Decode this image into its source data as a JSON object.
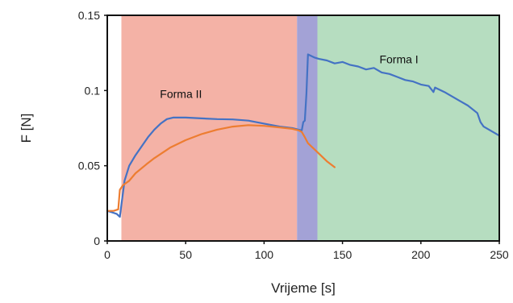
{
  "chart_data": {
    "type": "line",
    "xlabel": "Vrijeme [s]",
    "ylabel": "F  [N]",
    "xlim": [
      0,
      250
    ],
    "ylim": [
      0,
      0.15
    ],
    "x_ticks": [
      0,
      50,
      100,
      150,
      200,
      250
    ],
    "y_ticks": [
      0,
      0.05,
      0.1,
      0.15
    ],
    "x_tick_labels": [
      "0",
      "50",
      "100",
      "150",
      "200",
      "250"
    ],
    "y_tick_labels": [
      "0",
      "0.05",
      "0.1",
      "0.15"
    ],
    "grid": false,
    "regions": [
      {
        "label": "Forma II",
        "x_start": 9,
        "x_end": 121,
        "color": "#f4b2a6",
        "label_x": 47,
        "label_y": 0.095
      },
      {
        "label": "",
        "x_start": 121,
        "x_end": 134,
        "color": "#a3a2d6",
        "label_x": null,
        "label_y": null
      },
      {
        "label": "Forma I",
        "x_start": 134,
        "x_end": 250,
        "color": "#b6ddc0",
        "label_x": 186,
        "label_y": 0.118
      }
    ],
    "series": [
      {
        "color": "#4472c4",
        "points": [
          [
            0,
            0.02
          ],
          [
            3,
            0.019
          ],
          [
            6,
            0.018
          ],
          [
            8,
            0.016
          ],
          [
            9,
            0.024
          ],
          [
            11,
            0.04
          ],
          [
            14,
            0.05
          ],
          [
            18,
            0.057
          ],
          [
            22,
            0.063
          ],
          [
            26,
            0.069
          ],
          [
            30,
            0.074
          ],
          [
            34,
            0.078
          ],
          [
            38,
            0.081
          ],
          [
            42,
            0.082
          ],
          [
            50,
            0.082
          ],
          [
            60,
            0.0815
          ],
          [
            70,
            0.081
          ],
          [
            80,
            0.0808
          ],
          [
            90,
            0.08
          ],
          [
            100,
            0.078
          ],
          [
            110,
            0.076
          ],
          [
            118,
            0.075
          ],
          [
            122,
            0.074
          ],
          [
            124,
            0.0735
          ],
          [
            125,
            0.079
          ],
          [
            126,
            0.08
          ],
          [
            127,
            0.098
          ],
          [
            128,
            0.124
          ],
          [
            132,
            0.122
          ],
          [
            135,
            0.121
          ],
          [
            140,
            0.12
          ],
          [
            145,
            0.118
          ],
          [
            150,
            0.119
          ],
          [
            155,
            0.117
          ],
          [
            160,
            0.116
          ],
          [
            165,
            0.114
          ],
          [
            170,
            0.115
          ],
          [
            175,
            0.112
          ],
          [
            180,
            0.111
          ],
          [
            185,
            0.109
          ],
          [
            190,
            0.107
          ],
          [
            195,
            0.106
          ],
          [
            200,
            0.104
          ],
          [
            205,
            0.103
          ],
          [
            208,
            0.099
          ],
          [
            209,
            0.102
          ],
          [
            215,
            0.099
          ],
          [
            220,
            0.096
          ],
          [
            225,
            0.093
          ],
          [
            230,
            0.09
          ],
          [
            236,
            0.085
          ],
          [
            238,
            0.079
          ],
          [
            240,
            0.076
          ],
          [
            245,
            0.073
          ],
          [
            250,
            0.07
          ]
        ]
      },
      {
        "color": "#ed7d31",
        "points": [
          [
            0,
            0.02
          ],
          [
            4,
            0.02
          ],
          [
            7,
            0.021
          ],
          [
            8,
            0.034
          ],
          [
            10,
            0.037
          ],
          [
            14,
            0.04
          ],
          [
            18,
            0.045
          ],
          [
            25,
            0.051
          ],
          [
            30,
            0.055
          ],
          [
            40,
            0.062
          ],
          [
            50,
            0.067
          ],
          [
            60,
            0.071
          ],
          [
            70,
            0.074
          ],
          [
            80,
            0.076
          ],
          [
            90,
            0.077
          ],
          [
            100,
            0.0765
          ],
          [
            110,
            0.0755
          ],
          [
            118,
            0.0745
          ],
          [
            122,
            0.0735
          ],
          [
            124,
            0.0725
          ],
          [
            126,
            0.069
          ],
          [
            128,
            0.065
          ],
          [
            132,
            0.061
          ],
          [
            136,
            0.057
          ],
          [
            140,
            0.053
          ],
          [
            145,
            0.049
          ]
        ]
      }
    ]
  }
}
